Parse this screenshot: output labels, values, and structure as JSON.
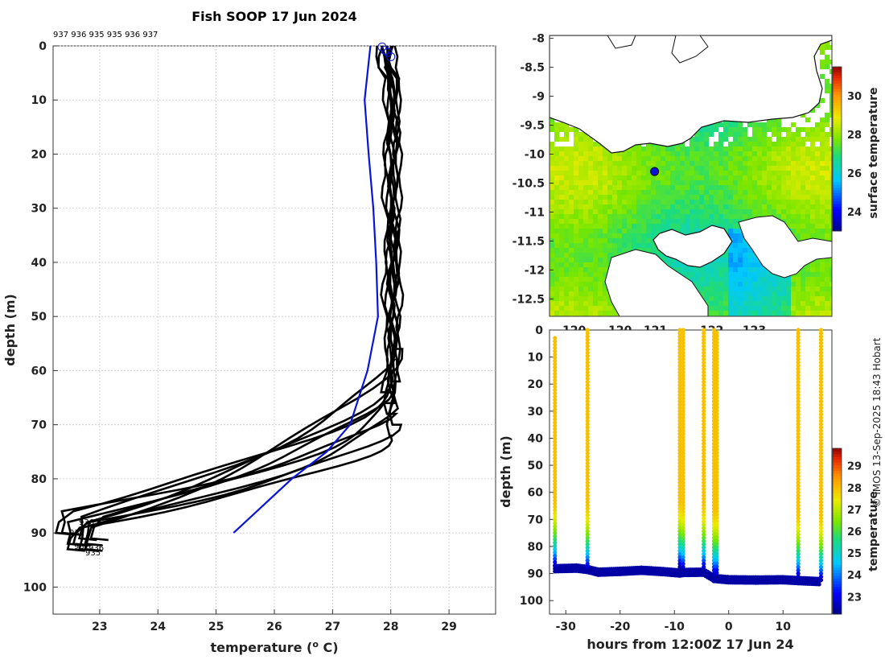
{
  "chart_data": [
    {
      "type": "line",
      "title": "Fish SOOP 17 Jun 2024",
      "xlabel": "temperature (",
      "xlabel_sup": "o",
      "xlabel_end": " C)",
      "ylabel": "depth (m)",
      "xlim": [
        22.2,
        29.8
      ],
      "ylim": [
        0,
        105
      ],
      "xticks": [
        23,
        24,
        25,
        26,
        27,
        28,
        29
      ],
      "yticks": [
        0,
        10,
        20,
        30,
        40,
        50,
        60,
        70,
        80,
        90,
        100
      ],
      "top_label": "937 936 935 935 936 937",
      "bottom_labels": [
        "936",
        "937",
        "935",
        "937",
        "936"
      ],
      "black_profiles": [
        {
          "isotherm": 28.0,
          "mld": 80,
          "bottom": 93,
          "t_bottom": 22.5
        },
        {
          "isotherm": 28.05,
          "mld": 78,
          "bottom": 92,
          "t_bottom": 22.8
        },
        {
          "isotherm": 27.95,
          "mld": 76,
          "bottom": 90,
          "t_bottom": 22.4
        },
        {
          "isotherm": 28.1,
          "mld": 75,
          "bottom": 93,
          "t_bottom": 22.7
        },
        {
          "isotherm": 28.0,
          "mld": 74,
          "bottom": 91,
          "t_bottom": 22.9
        },
        {
          "isotherm": 28.15,
          "mld": 70,
          "bottom": 90,
          "t_bottom": 22.3
        },
        {
          "isotherm": 28.05,
          "mld": 68,
          "bottom": 92,
          "t_bottom": 22.6
        },
        {
          "isotherm": 28.1,
          "mld": 64,
          "bottom": 93,
          "t_bottom": 22.8
        },
        {
          "isotherm": 27.9,
          "mld": 72,
          "bottom": 92,
          "t_bottom": 22.5
        },
        {
          "isotherm": 28.0,
          "mld": 66,
          "bottom": 91,
          "t_bottom": 22.7
        }
      ],
      "blue_profile": {
        "temperature": [
          27.65,
          27.6,
          27.55,
          27.62,
          27.7,
          27.75,
          27.78,
          27.6,
          27.3,
          26.9,
          26.3,
          25.7,
          25.3
        ],
        "depth": [
          0,
          5,
          10,
          20,
          30,
          40,
          50,
          60,
          70,
          75,
          80,
          86,
          90
        ]
      },
      "surface_markers": [
        [
          27.85,
          0.2
        ],
        [
          27.95,
          1.2
        ],
        [
          28.0,
          2.0
        ],
        [
          27.9,
          0.8
        ]
      ]
    },
    {
      "type": "heatmap",
      "subtitle": "surface temperature map",
      "colorbar_label": "surface temperature",
      "colorbar_ticks": [
        24,
        26,
        28,
        30
      ],
      "colorbar_range": [
        23,
        31.5
      ],
      "yticks": [
        -8,
        -8.5,
        -9,
        -9.5,
        -10,
        -10.5,
        -11,
        -11.5,
        -12,
        -12.5
      ],
      "xticks": [
        "120",
        "120",
        "121",
        "122",
        "123"
      ],
      "ylim": [
        -12.8,
        -7.95
      ],
      "xlim": [
        119.5,
        123.5
      ],
      "ship_marker": [
        121.0,
        -10.3
      ]
    },
    {
      "type": "scatter",
      "xlabel": "hours from 12:00Z 17 Jun 24",
      "ylabel": "depth (m)",
      "xlim": [
        -33,
        19
      ],
      "ylim": [
        0,
        105
      ],
      "xticks": [
        -30,
        -20,
        -10,
        0,
        10
      ],
      "yticks": [
        0,
        10,
        20,
        30,
        40,
        50,
        60,
        70,
        80,
        90,
        100
      ],
      "colorbar_label": "temperature",
      "colorbar_ticks": [
        23,
        24,
        25,
        26,
        27,
        28,
        29
      ],
      "colorbar_range": [
        22.2,
        29.8
      ],
      "casts": [
        {
          "hour": -32.0,
          "start_depth": 3,
          "bottom": 88
        },
        {
          "hour": -26.0,
          "start_depth": 0,
          "bottom": 89
        },
        {
          "hour": -9.0,
          "start_depth": 0,
          "bottom": 88
        },
        {
          "hour": -8.4,
          "start_depth": 0,
          "bottom": 89
        },
        {
          "hour": -4.6,
          "start_depth": 0,
          "bottom": 89
        },
        {
          "hour": -2.7,
          "start_depth": 0,
          "bottom": 91
        },
        {
          "hour": -2.2,
          "start_depth": 1,
          "bottom": 91
        },
        {
          "hour": 12.8,
          "start_depth": 0,
          "bottom": 92
        },
        {
          "hour": 17.0,
          "start_depth": 0,
          "bottom": 93
        }
      ],
      "bottom_trace": [
        [
          -32,
          88.2
        ],
        [
          -28,
          88.0
        ],
        [
          -26,
          88.5
        ],
        [
          -24,
          89.5
        ],
        [
          -20,
          89.2
        ],
        [
          -16,
          88.8
        ],
        [
          -12,
          89.3
        ],
        [
          -9,
          89.8
        ],
        [
          -8.4,
          89.6
        ],
        [
          -4.6,
          89.5
        ],
        [
          -2.7,
          91.8
        ],
        [
          0,
          92.3
        ],
        [
          5,
          92.4
        ],
        [
          10,
          92.3
        ],
        [
          12.8,
          92.6
        ],
        [
          17,
          93.0
        ]
      ]
    }
  ],
  "credit": "© IMOS 13-Sep-2025 18:43 Hobart",
  "colors": {
    "profile": "#000000",
    "blue": "#0a14d8",
    "land": "#ffffff"
  }
}
